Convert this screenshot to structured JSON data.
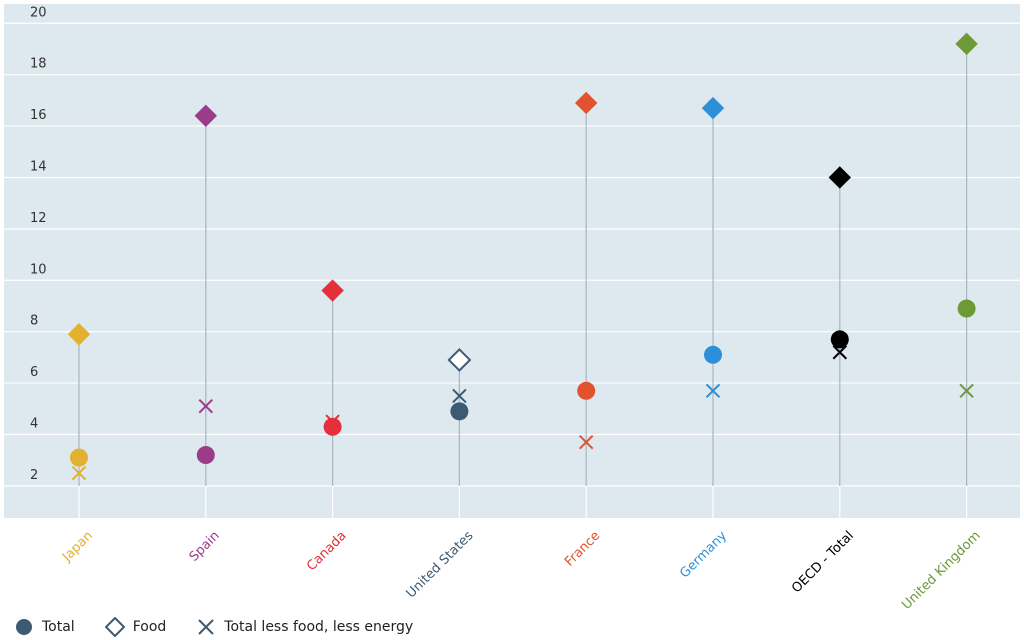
{
  "chart_data": {
    "type": "scatter",
    "categories": [
      "Japan",
      "Spain",
      "Canada",
      "United States",
      "France",
      "Germany",
      "OECD - Total",
      "United Kingdom"
    ],
    "category_colors": [
      "#e3b12f",
      "#9b3b8a",
      "#e3303a",
      "#3d5a73",
      "#e2522d",
      "#2e8fd9",
      "#000000",
      "#6b9a36"
    ],
    "series": [
      {
        "name": "Total",
        "marker": "circle",
        "values": [
          3.1,
          3.2,
          4.3,
          4.9,
          5.7,
          7.1,
          7.7,
          8.9
        ]
      },
      {
        "name": "Food",
        "marker": "diamond",
        "values": [
          7.9,
          16.4,
          9.6,
          6.9,
          16.9,
          16.7,
          14.0,
          19.2
        ]
      },
      {
        "name": "Total less food, less energy",
        "marker": "x",
        "values": [
          2.5,
          5.1,
          4.5,
          5.5,
          3.7,
          5.7,
          7.2,
          5.7
        ]
      }
    ],
    "yticks": [
      2,
      4,
      6,
      8,
      10,
      12,
      14,
      16,
      18,
      20
    ],
    "ylim": [
      0.75,
      20.75
    ],
    "grid": true,
    "legend_position": "bottom-left",
    "title": "",
    "xlabel": "",
    "ylabel": ""
  },
  "legend": {
    "items": [
      {
        "label": "Total",
        "icon": "circle-icon",
        "color": "#3d5a73"
      },
      {
        "label": "Food",
        "icon": "diamond-outline-icon",
        "color": "#3d5a73"
      },
      {
        "label": "Total less food, less energy",
        "icon": "x-icon",
        "color": "#3d5a73"
      }
    ]
  }
}
